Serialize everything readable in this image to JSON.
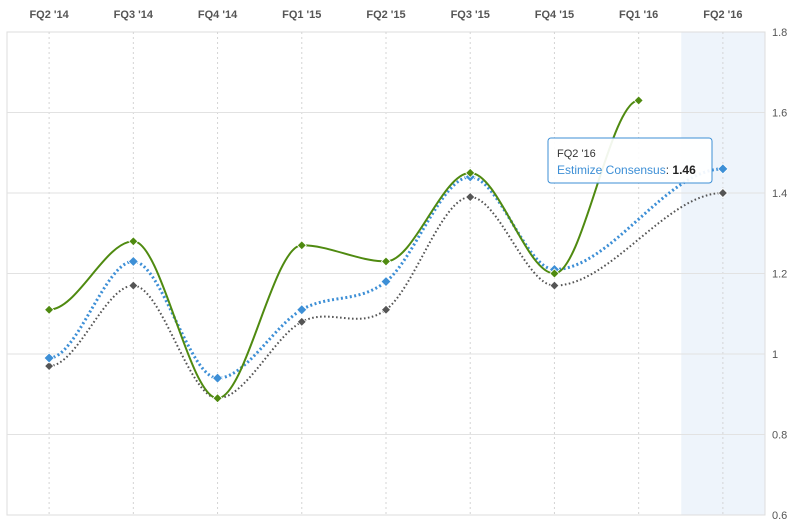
{
  "chart_data": {
    "type": "line",
    "categories": [
      "FQ2 '14",
      "FQ3 '14",
      "FQ4 '14",
      "FQ1 '15",
      "FQ2 '15",
      "FQ3 '15",
      "FQ4 '15",
      "FQ1 '16",
      "FQ2 '16"
    ],
    "y_ticks": [
      "0.6",
      "0.8",
      "1",
      "1.2",
      "1.4",
      "1.6",
      "1.8"
    ],
    "ylim": [
      0.6,
      1.8
    ],
    "grid": true,
    "highlighted_category": "FQ2 '16",
    "series": [
      {
        "color": "#4f8a10",
        "style": "solid",
        "values": [
          1.11,
          1.28,
          0.89,
          1.27,
          1.23,
          1.45,
          1.2,
          1.63,
          null
        ]
      },
      {
        "name": "Estimize Consensus",
        "color": "#3d8fd6",
        "style": "dotted",
        "values": [
          0.99,
          1.23,
          0.94,
          1.11,
          1.18,
          1.44,
          1.21,
          null,
          1.46
        ]
      },
      {
        "color": "#555555",
        "style": "dotted",
        "values": [
          0.97,
          1.17,
          0.89,
          1.08,
          1.11,
          1.39,
          1.17,
          null,
          1.4
        ]
      }
    ],
    "tooltip": {
      "title": "FQ2 '16",
      "label": "Estimize Consensus",
      "value": "1.46"
    }
  }
}
